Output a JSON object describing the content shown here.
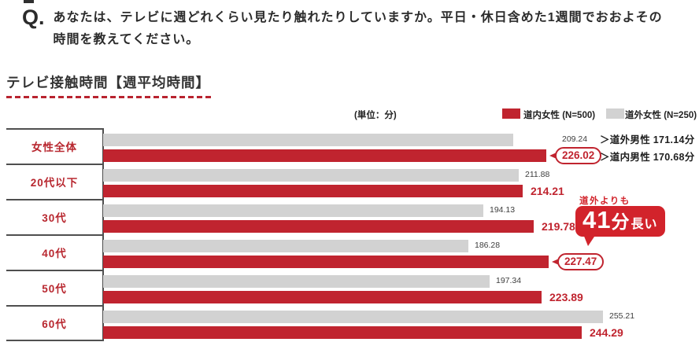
{
  "question": {
    "prefix": "Q.",
    "line1": "あなたは、テレビに週どれくらい見たり触れたりしていますか。平日・休日含めた1週間でおおよその",
    "line2": "時間を教えてください。"
  },
  "section": {
    "title": "テレビ接触時間【週平均時間】"
  },
  "legend": {
    "unit": "(単位：分)"
  },
  "annotations": {
    "gray_note": "＞道外男性 171.14分",
    "red_note": "＞道内男性 170.68分"
  },
  "callout": {
    "label": "道外よりも",
    "value": "41",
    "unit": "分",
    "suffix": "長い"
  },
  "colors": {
    "bar_red": "#c0242f",
    "bar_gray": "#d2d2d2",
    "callout_red": "#d2232b",
    "axis_line": "#4f4f4f"
  },
  "chart_data": {
    "type": "bar",
    "orientation": "horizontal",
    "title": "テレビ接触時間【週平均時間】",
    "value_unit": "分",
    "categories": [
      "女性全体",
      "20代以下",
      "30代",
      "40代",
      "50代",
      "60代"
    ],
    "series": [
      {
        "name": "道内女性 (N=500)",
        "color": "#c0242f",
        "values": [
          226.02,
          214.21,
          219.78,
          227.47,
          223.89,
          244.29
        ]
      },
      {
        "name": "道外女性 (N=250)",
        "color": "#d2d2d2",
        "values": [
          209.24,
          211.88,
          194.13,
          186.28,
          197.34,
          255.21
        ]
      }
    ],
    "row_bar_order": [
      "道外女性 (N=250)",
      "道内女性 (N=500)"
    ],
    "xlim": [
      0,
      304
    ],
    "grid": false,
    "legend_position": "top-right",
    "bubble_value_rows": [
      0,
      3
    ],
    "annotations": [
      {
        "row": "女性全体",
        "series": "道外女性 (N=250)",
        "text": "＞道外男性 171.14分"
      },
      {
        "row": "女性全体",
        "series": "道内女性 (N=500)",
        "text": "＞道内男性 170.68分"
      },
      {
        "row": "40代",
        "series": "道内女性 (N=500)",
        "text": "道外よりも41分長い"
      }
    ]
  }
}
